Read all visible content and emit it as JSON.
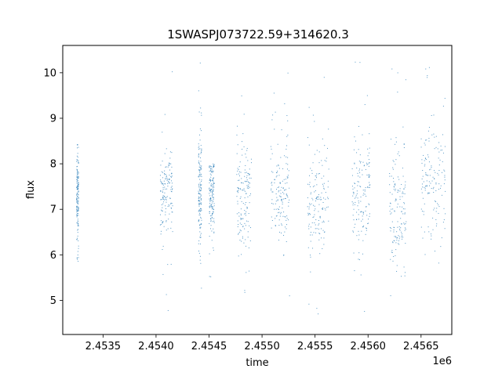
{
  "chart_data": {
    "type": "scatter",
    "title": "1SWASPJ073722.59+314620.3",
    "xlabel": "time",
    "ylabel": "flux",
    "x_offset_label": "1e6",
    "xlim": [
      2.45312,
      2.45679
    ],
    "ylim": [
      4.25,
      10.6
    ],
    "x_ticks": [
      2.4535,
      2.454,
      2.4545,
      2.455,
      2.4555,
      2.456,
      2.4565
    ],
    "x_tick_labels": [
      "2.4535",
      "2.4540",
      "2.4545",
      "2.4550",
      "2.4555",
      "2.4560",
      "2.4565"
    ],
    "y_ticks": [
      5,
      6,
      7,
      8,
      9,
      10
    ],
    "y_tick_labels": [
      "5",
      "6",
      "7",
      "8",
      "9",
      "10"
    ],
    "grid": false,
    "marker_color": "#1f77b4",
    "observing_seasons": [
      {
        "x_start": 2.45325,
        "x_end": 2.45327,
        "y_center": 7.3,
        "y_spread": 0.5,
        "y_min": 5.8,
        "y_max": 8.5
      },
      {
        "x_start": 2.45404,
        "x_end": 2.45416,
        "y_center": 7.4,
        "y_spread": 0.45,
        "y_min": 4.6,
        "y_max": 10.1
      },
      {
        "x_start": 2.4544,
        "x_end": 2.45443,
        "y_center": 7.3,
        "y_spread": 0.6,
        "y_min": 4.6,
        "y_max": 10.3
      },
      {
        "x_start": 2.4545,
        "x_end": 2.45455,
        "y_center": 7.3,
        "y_spread": 0.4,
        "y_min": 5.5,
        "y_max": 8.0
      },
      {
        "x_start": 2.45476,
        "x_end": 2.4549,
        "y_center": 7.3,
        "y_spread": 0.55,
        "y_min": 4.6,
        "y_max": 10.2
      },
      {
        "x_start": 2.45508,
        "x_end": 2.45526,
        "y_center": 7.3,
        "y_spread": 0.45,
        "y_min": 4.6,
        "y_max": 10.3
      },
      {
        "x_start": 2.45543,
        "x_end": 2.45563,
        "y_center": 7.2,
        "y_spread": 0.6,
        "y_min": 4.6,
        "y_max": 10.3
      },
      {
        "x_start": 2.45585,
        "x_end": 2.45602,
        "y_center": 7.2,
        "y_spread": 0.6,
        "y_min": 4.6,
        "y_max": 10.3
      },
      {
        "x_start": 2.4562,
        "x_end": 2.45636,
        "y_center": 7.0,
        "y_spread": 0.65,
        "y_min": 4.7,
        "y_max": 10.2
      },
      {
        "x_start": 2.4565,
        "x_end": 2.45673,
        "y_center": 7.6,
        "y_spread": 0.55,
        "y_min": 5.0,
        "y_max": 10.3
      }
    ]
  }
}
